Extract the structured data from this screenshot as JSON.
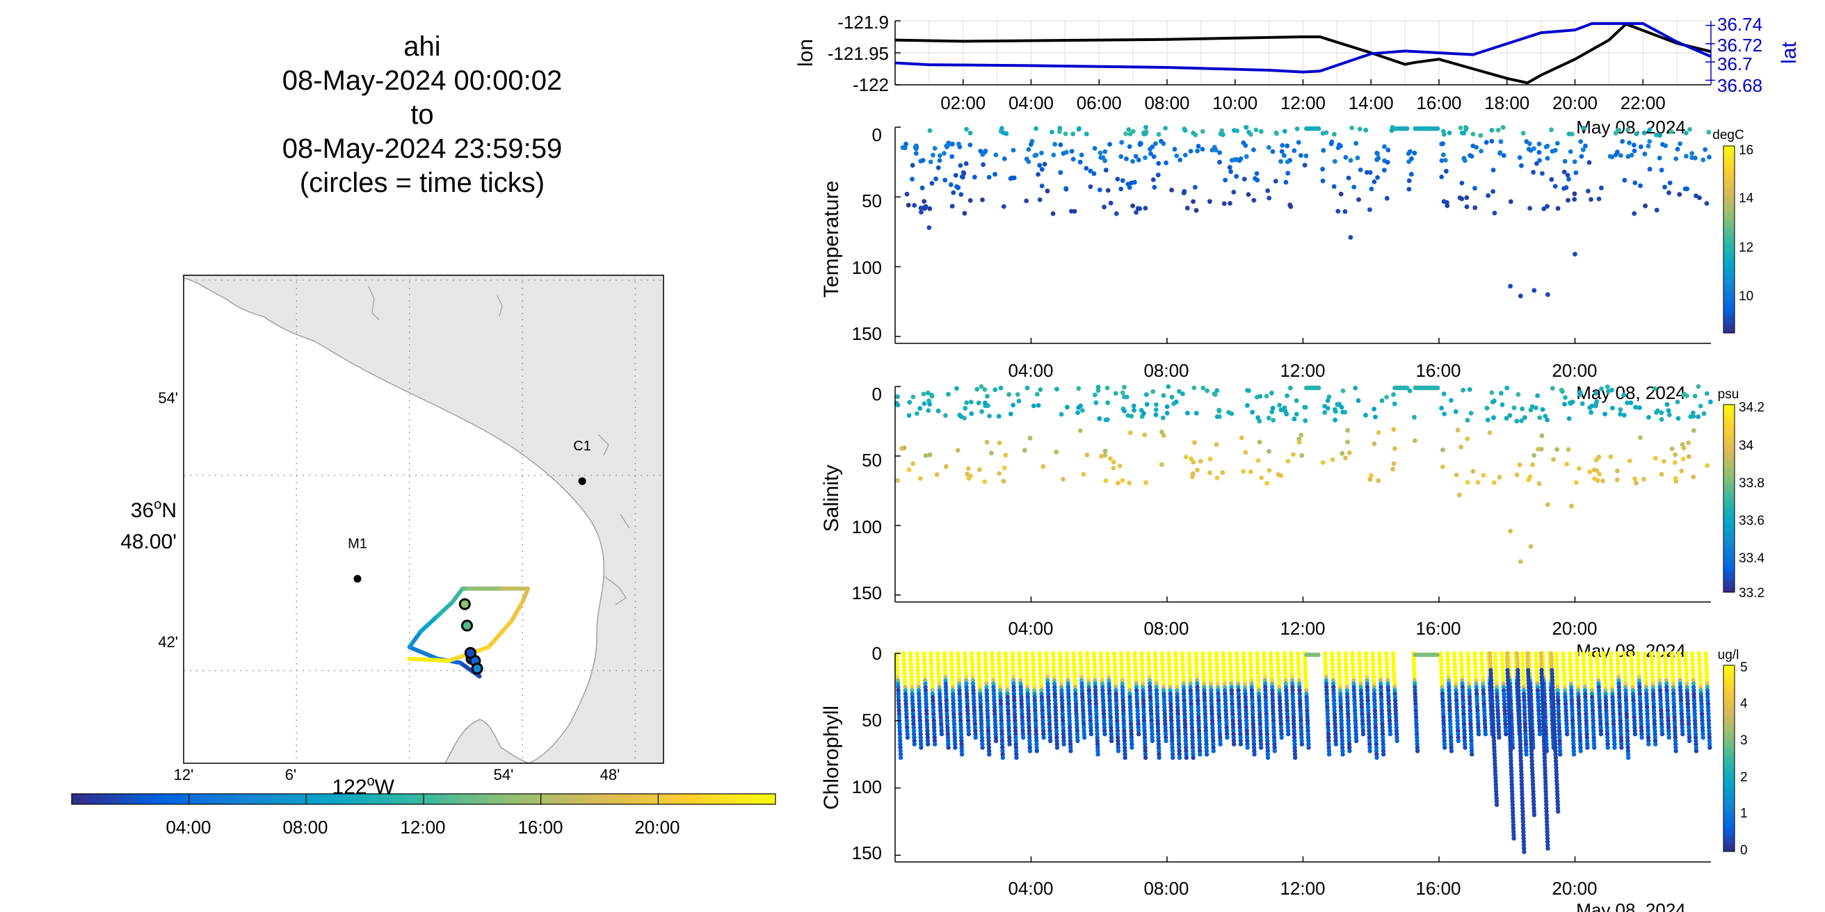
{
  "title": {
    "line1": "ahi",
    "line2": "08-May-2024 00:00:02",
    "line3": "to",
    "line4": "08-May-2024 23:59:59",
    "line5": "(circles = time ticks)"
  },
  "colors": {
    "lon_line": "#000000",
    "lat_line": "#0000cc",
    "land": "#e6e6e6",
    "coast": "#a0a0a0",
    "parula": [
      "#352a87",
      "#0363e1",
      "#1485d4",
      "#06a7c6",
      "#38b99e",
      "#92bf73",
      "#d9ba56",
      "#fcce2e",
      "#f9fb0e"
    ]
  },
  "chart_data": [
    {
      "type": "line",
      "panel": "navigation",
      "ylabel": "lon",
      "y2label": "lat",
      "x_date": "May 08, 2024",
      "x_ticks": [
        "02:00",
        "04:00",
        "06:00",
        "08:00",
        "10:00",
        "12:00",
        "14:00",
        "16:00",
        "18:00",
        "20:00",
        "22:00"
      ],
      "ylim": [
        -122,
        -121.9
      ],
      "y_ticks": [
        "-121.9",
        "-121.95",
        "-122"
      ],
      "y2lim": [
        36.675,
        36.745
      ],
      "y2_ticks": [
        "36.74",
        "36.72",
        "36.7",
        "36.68"
      ],
      "grid": true,
      "series": [
        {
          "name": "lon",
          "axis": "left",
          "x": [
            0.0,
            2,
            4,
            6,
            8,
            10,
            11,
            12,
            12.5,
            14,
            15,
            15.3,
            16,
            17,
            18,
            18.6,
            19,
            20,
            21,
            21.5,
            22,
            23,
            24
          ],
          "y": [
            -121.93,
            -121.932,
            -121.931,
            -121.93,
            -121.929,
            -121.927,
            -121.926,
            -121.925,
            -121.925,
            -121.95,
            -121.968,
            -121.965,
            -121.96,
            -121.975,
            -121.99,
            -121.997,
            -121.985,
            -121.96,
            -121.93,
            -121.905,
            -121.915,
            -121.935,
            -121.948
          ]
        },
        {
          "name": "lat",
          "axis": "right",
          "x": [
            0.0,
            1,
            4,
            8,
            11,
            12,
            12.5,
            14,
            15,
            16,
            17,
            18,
            19,
            20,
            20.5,
            21,
            22,
            23,
            24
          ],
          "y": [
            36.699,
            36.697,
            36.696,
            36.694,
            36.691,
            36.689,
            36.69,
            36.709,
            36.712,
            36.71,
            36.708,
            36.72,
            36.732,
            36.735,
            36.742,
            36.742,
            36.742,
            36.722,
            36.706
          ]
        }
      ]
    },
    {
      "type": "scatter",
      "panel": "temperature",
      "ylabel": "Temperature",
      "x_date": "May 08, 2024",
      "x_ticks": [
        "04:00",
        "08:00",
        "12:00",
        "16:00",
        "20:00"
      ],
      "ylim": [
        0,
        155
      ],
      "y_ticks": [
        "0",
        "50",
        "100",
        "150"
      ],
      "y_reversed": true,
      "colorbar": {
        "unit": "degC",
        "range": [
          8.5,
          16.5
        ],
        "ticks": [
          "16",
          "14",
          "12",
          "10"
        ]
      },
      "groups": [
        {
          "name": "surface",
          "x_range": [
            0,
            24
          ],
          "depth": [
            0,
            6
          ],
          "value": [
            11.5,
            12.5
          ],
          "count": 90
        },
        {
          "name": "upper",
          "x_range": [
            0,
            24
          ],
          "depth": [
            10,
            25
          ],
          "value": [
            9.5,
            10.5
          ],
          "count": 210
        },
        {
          "name": "mid",
          "x_range": [
            0,
            24
          ],
          "depth": [
            25,
            45
          ],
          "value": [
            9,
            9.6
          ],
          "count": 120
        },
        {
          "name": "deep",
          "x_range": [
            0,
            24
          ],
          "depth": [
            45,
            62
          ],
          "value": [
            8.7,
            9.1
          ],
          "count": 90
        }
      ],
      "extra_points": [
        [
          13.4,
          79
        ],
        [
          18.1,
          114
        ],
        [
          18.4,
          121
        ],
        [
          18.8,
          117
        ],
        [
          19.2,
          120
        ],
        [
          20.0,
          91
        ],
        [
          1.0,
          72
        ]
      ],
      "gaps": [
        [
          12.1,
          12.5
        ],
        [
          14.7,
          15.1
        ],
        [
          15.3,
          16.0
        ]
      ]
    },
    {
      "type": "scatter",
      "panel": "salinity",
      "ylabel": "Salinity",
      "x_date": "May 08, 2024",
      "x_ticks": [
        "04:00",
        "08:00",
        "12:00",
        "16:00",
        "20:00"
      ],
      "ylim": [
        0,
        155
      ],
      "y_ticks": [
        "0",
        "50",
        "100",
        "150"
      ],
      "y_reversed": true,
      "colorbar": {
        "unit": "psu",
        "range": [
          33.2,
          34.2
        ],
        "ticks": [
          "34.2",
          "34",
          "33.8",
          "33.6",
          "33.4",
          "33.2"
        ]
      },
      "groups": [
        {
          "name": "surface",
          "x_range": [
            0,
            24
          ],
          "depth": [
            0,
            8
          ],
          "value": [
            33.6,
            33.7
          ],
          "count": 90
        },
        {
          "name": "upper",
          "x_range": [
            0,
            24
          ],
          "depth": [
            10,
            25
          ],
          "value": [
            33.55,
            33.65
          ],
          "count": 180
        },
        {
          "name": "mid",
          "x_range": [
            0,
            24
          ],
          "depth": [
            30,
            50
          ],
          "value": [
            33.85,
            34.0
          ],
          "count": 60
        },
        {
          "name": "deep",
          "x_range": [
            0,
            24
          ],
          "depth": [
            50,
            70
          ],
          "value": [
            33.95,
            34.05
          ],
          "count": 110
        }
      ],
      "extra_points": [
        [
          18.1,
          104
        ],
        [
          18.4,
          126
        ],
        [
          18.7,
          115
        ],
        [
          19.2,
          85
        ],
        [
          19.9,
          86
        ],
        [
          17.0,
          61
        ],
        [
          16.6,
          78
        ]
      ],
      "gaps": [
        [
          12.1,
          12.5
        ],
        [
          14.7,
          15.1
        ],
        [
          15.3,
          16.0
        ]
      ]
    },
    {
      "type": "scatter",
      "panel": "chlorophyll",
      "ylabel": "Chlorophyll",
      "x_date": "May 08, 2024",
      "x_ticks": [
        "04:00",
        "08:00",
        "12:00",
        "16:00",
        "20:00"
      ],
      "ylim": [
        0,
        155
      ],
      "y_ticks": [
        "0",
        "50",
        "100",
        "150"
      ],
      "y_reversed": true,
      "colorbar": {
        "unit": "ug/l",
        "range": [
          0,
          5
        ],
        "ticks": [
          "5",
          "4",
          "3",
          "2",
          "1",
          "0"
        ]
      },
      "profiles": {
        "x_range": [
          0,
          24
        ],
        "spacing_hours": 0.2,
        "max_depth": [
          60,
          80
        ],
        "high_layer_depth": [
          15,
          25
        ],
        "high_value": 5,
        "low_value": 0.2
      },
      "deep_profiles": [
        [
          17.5,
          115
        ],
        [
          18.0,
          140
        ],
        [
          18.3,
          148
        ],
        [
          18.6,
          122
        ],
        [
          19.0,
          147
        ],
        [
          19.3,
          118
        ]
      ],
      "gaps": [
        [
          12.1,
          12.5
        ],
        [
          14.7,
          15.1
        ],
        [
          15.3,
          16.0
        ]
      ]
    }
  ],
  "map": {
    "lon_ticks": [
      "12'",
      "6'",
      "54'",
      "48'"
    ],
    "lon_label_deg": "122",
    "lon_label_hem": "W",
    "lat_ticks": [
      "54'",
      "42'"
    ],
    "lat_label_deg": "36",
    "lat_label_hem": "N",
    "lat_label_min": "48.00'",
    "stations": [
      {
        "name": "M1",
        "lon": -122.046,
        "lat": 36.747
      },
      {
        "name": "C1",
        "lon": -121.847,
        "lat": 36.797
      }
    ],
    "track": {
      "lon": [
        -121.94,
        -121.938,
        -121.955,
        -121.975,
        -122.0,
        -121.99,
        -121.975,
        -121.962,
        -121.953,
        -121.948,
        -121.918,
        -121.895,
        -121.9,
        -121.91,
        -121.93,
        -121.965,
        -122.0
      ],
      "lat": [
        36.699,
        36.697,
        36.704,
        36.706,
        36.712,
        36.72,
        36.728,
        36.735,
        36.742,
        36.742,
        36.742,
        36.742,
        36.735,
        36.725,
        36.712,
        36.705,
        36.706
      ],
      "hour": [
        0,
        1,
        2,
        4,
        6,
        8,
        10,
        12,
        12.5,
        14,
        16,
        18,
        19,
        20,
        21,
        22,
        24
      ]
    },
    "time_circles": [
      {
        "lon": -121.949,
        "lat": 36.723,
        "hour": 13
      },
      {
        "lon": -121.951,
        "lat": 36.734,
        "hour": 15
      },
      {
        "lon": -121.945,
        "lat": 36.706,
        "hour": 3
      },
      {
        "lon": -121.942,
        "lat": 36.705,
        "hour": 4
      },
      {
        "lon": -121.946,
        "lat": 36.709,
        "hour": 2
      },
      {
        "lon": -121.94,
        "lat": 36.701,
        "hour": 6
      }
    ],
    "colorbar_ticks": [
      "04:00",
      "08:00",
      "12:00",
      "16:00",
      "20:00"
    ]
  }
}
